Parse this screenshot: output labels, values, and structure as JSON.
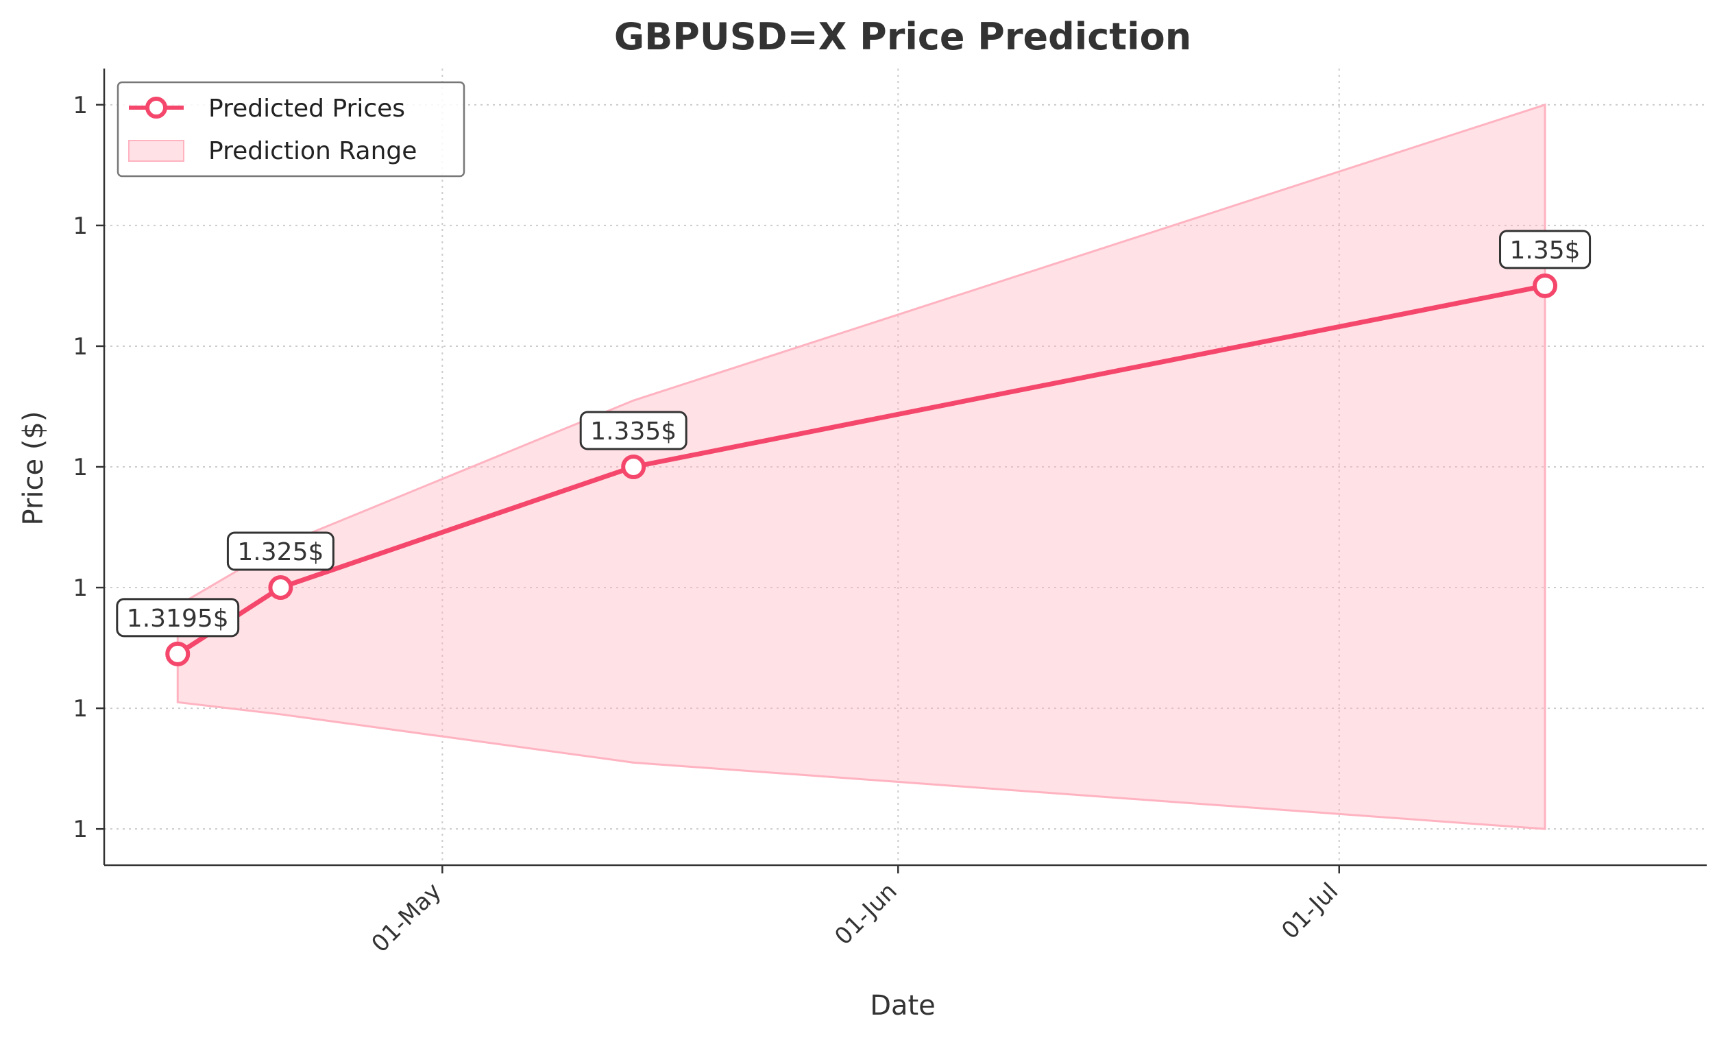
{
  "chart_data": {
    "type": "line",
    "title": "GBPUSD=X Price Prediction",
    "xlabel": "Date",
    "ylabel": "Price ($)",
    "x_ticks": [
      {
        "date": "2025-05-01",
        "label": "01-May"
      },
      {
        "date": "2025-06-01",
        "label": "01-Jun"
      },
      {
        "date": "2025-07-01",
        "label": "01-Jul"
      }
    ],
    "y_tick_labels": [
      "1",
      "1",
      "1",
      "1",
      "1",
      "1",
      "1"
    ],
    "y_ticks_values": [
      1.305,
      1.315,
      1.325,
      1.335,
      1.345,
      1.355,
      1.365
    ],
    "ylim": [
      1.302,
      1.368
    ],
    "xlim": [
      "2025-04-08",
      "2025-07-26"
    ],
    "grid": true,
    "legend_position": "top-left",
    "series": [
      {
        "name": "Predicted Prices",
        "color": "#f4476b",
        "points": [
          {
            "x": "2025-04-13",
            "y": 1.3195,
            "label": "1.3195$"
          },
          {
            "x": "2025-04-20",
            "y": 1.325,
            "label": "1.325$"
          },
          {
            "x": "2025-05-14",
            "y": 1.335,
            "label": "1.335$"
          },
          {
            "x": "2025-07-15",
            "y": 1.35,
            "label": "1.35$"
          }
        ]
      }
    ],
    "range": {
      "name": "Prediction Range",
      "color": "#ffb3c1",
      "points": [
        {
          "x": "2025-04-13",
          "low": 1.3155,
          "high": 1.3235
        },
        {
          "x": "2025-04-20",
          "low": 1.3145,
          "high": 1.3285
        },
        {
          "x": "2025-05-14",
          "low": 1.3105,
          "high": 1.3405
        },
        {
          "x": "2025-07-15",
          "low": 1.305,
          "high": 1.365
        }
      ]
    }
  }
}
